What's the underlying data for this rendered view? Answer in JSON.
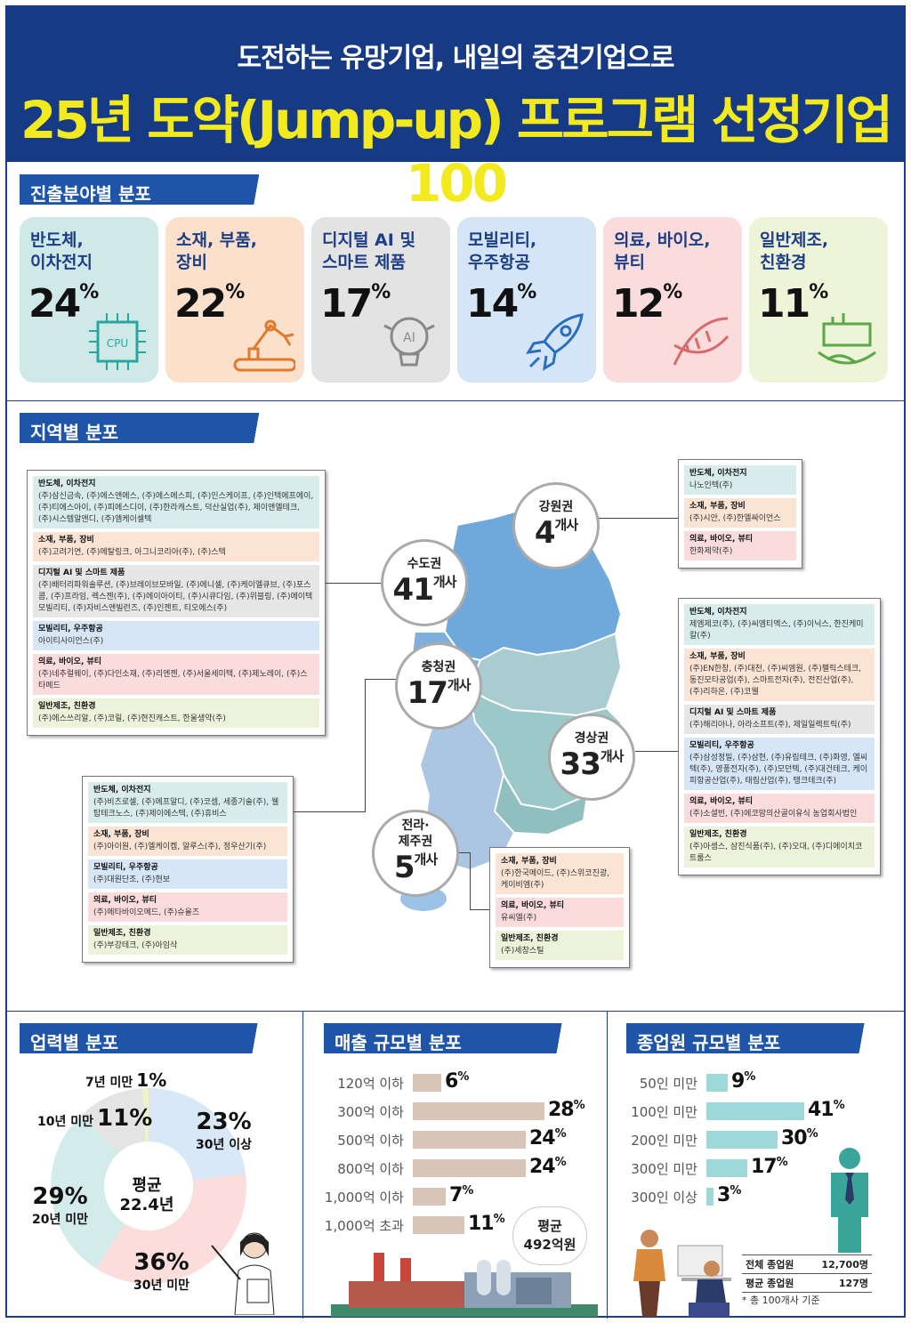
{
  "header": {
    "subtitle": "도전하는 유망기업, 내일의 중견기업으로",
    "title": "25년 도약(Jump-up) 프로그램 선정기업 100"
  },
  "sections": {
    "field": "진출분야별 분포",
    "region": "지역별 분포",
    "age": "업력별 분포",
    "sales": "매출 규모별 분포",
    "employees": "종업원 규모별 분포"
  },
  "fields": [
    {
      "name": "반도체,\n이차전지",
      "pct": "24",
      "color": "#cfe9e9",
      "icon": "cpu-icon"
    },
    {
      "name": "소재, 부품,\n장비",
      "pct": "22",
      "color": "#fbe0cc",
      "icon": "robot-arm-icon"
    },
    {
      "name": "디지털 AI 및\n스마트 제품",
      "pct": "17",
      "color": "#e3e3e3",
      "icon": "ai-bulb-icon"
    },
    {
      "name": "모빌리티,\n우주항공",
      "pct": "14",
      "color": "#d3e5f6",
      "icon": "rocket-icon"
    },
    {
      "name": "의료, 바이오,\n뷰티",
      "pct": "12",
      "color": "#fbdcdc",
      "icon": "dna-icon"
    },
    {
      "name": "일반제조,\n친환경",
      "pct": "11",
      "color": "#eef4d7",
      "icon": "factory-earth-icon"
    }
  ],
  "pct_sign": "%",
  "unit_count": "개사",
  "regions": [
    {
      "name": "수도권",
      "count": "41"
    },
    {
      "name": "강원권",
      "count": "4"
    },
    {
      "name": "충청권",
      "count": "17"
    },
    {
      "name": "경상권",
      "count": "33"
    },
    {
      "name": "전라·\n제주권",
      "count": "5"
    }
  ],
  "boxes": {
    "capital": [
      {
        "t": "반도체, 이차전지",
        "v": "(주)삼신금속, (주)에스앤에스, (주)에스에스피, (주)인스케이프, (주)인텍에프에이, (주)티에스아이, (주)피에스디이, (주)한라캐스트, 덕산실업(주), 제이앤엘테크, (주)시스템알앤디, (주)엠케이셀텍"
      },
      {
        "t": "소재, 부품, 장비",
        "v": "(주)고려기연, (주)메탈링크, 아그니코리아(주), (주)스텍"
      },
      {
        "t": "디지털 AI 및 스마트 제품",
        "v": "(주)배터리파워솔루션, (주)브레이브모바일, (주)에니셀, (주)케이엘큐브, (주)포스콤, (주)프라임, 렉스젠(주), (주)에이아이티, (주)시큐다임, (주)위블링, (주)에이텍모빌리티, (주)자비스앤빌런즈, (주)인젠트, 티오에스(주)"
      },
      {
        "t": "모빌리티, 우주항공",
        "v": "아이티사이언스(주)"
      },
      {
        "t": "의료, 바이오, 뷰티",
        "v": "(주)네추럴웨이, (주)다인소재, (주)리엔젠, (주)서울세미텍, (주)제노레이, (주)스타메드"
      },
      {
        "t": "일반제조, 친환경",
        "v": "(주)에스쓰리알, (주)코릴, (주)현진캐스트, 한울생약(주)"
      }
    ],
    "gangwon": [
      {
        "t": "반도체, 이차전지",
        "v": "나노인텍(주)"
      },
      {
        "t": "소재, 부품, 장비",
        "v": "(주)시안, (주)한엘싸이언스"
      },
      {
        "t": "의료, 바이오, 뷰티",
        "v": "한화제약(주)"
      }
    ],
    "chungcheong": [
      {
        "t": "반도체, 이차전지",
        "v": "(주)비츠로셀, (주)에프알디, (주)코셈, 세종기술(주), 웰탑테크노스, (주)제이에스텍, (주)휴비스"
      },
      {
        "t": "소재, 부품, 장비",
        "v": "(주)아이원, (주)엘케이켐, 알루스(주), 정우산기(주)"
      },
      {
        "t": "모빌리티, 우주항공",
        "v": "(주)대원단조, (주)현보"
      },
      {
        "t": "의료, 바이오, 뷰티",
        "v": "(주)메타바이오메드, (주)슈올즈"
      },
      {
        "t": "일반제조, 친환경",
        "v": "(주)부강테크, (주)아임삭"
      }
    ],
    "gyeongsang": [
      {
        "t": "반도체, 이차전지",
        "v": "제엠제코(주), (주)씨엠티엑스, (주)이닉스, 한진케미칼(주)"
      },
      {
        "t": "소재, 부품, 장비",
        "v": "(주)EN한창, (주)대천, (주)씨엠원, (주)펠릭스테크, 동진모타공업(주), 스마트전자(주), 전진산업(주), (주)리하온, (주)코웰"
      },
      {
        "t": "디지털 AI 및 스마트 제품",
        "v": "(주)해리아나, 아라소프트(주), 제일일렉트릭(주)"
      },
      {
        "t": "모빌리티, 우주항공",
        "v": "(주)삼성정밀, (주)삼현, (주)유림테크, (주)화영, 엘씨텍(주), 영풍전자(주), (주)모던텍, (주)대건테크, 케이피항공산업(주), 태림산업(주), 탱크테크(주)"
      },
      {
        "t": "의료, 바이오, 뷰티",
        "v": "(주)소셜빈, (주)에코맘의산골이유식 농업회사법인"
      },
      {
        "t": "일반제조, 친환경",
        "v": "(주)아셈스, 삼진식품(주), (주)오대, (주)디에이치코트룸스"
      }
    ],
    "jeolla": [
      {
        "t": "소재, 부품, 장비",
        "v": "(주)한국메이드, (주)스위코진광, 케이비엠(주)"
      },
      {
        "t": "의료, 바이오, 뷰티",
        "v": "유씨엘(주)"
      },
      {
        "t": "일반제조, 친환경",
        "v": "(주)세창스틸"
      }
    ]
  },
  "age": {
    "center_label": "평균",
    "center_value": "22.4년",
    "slices": [
      {
        "label": "30년 이상",
        "pct": "23",
        "value": 23,
        "color": "#d9e8f6"
      },
      {
        "label": "30년 미만",
        "pct": "36",
        "value": 36,
        "color": "#fbdedc"
      },
      {
        "label": "20년 미만",
        "pct": "29",
        "value": 29,
        "color": "#d4ebeb"
      },
      {
        "label": "10년 미만",
        "pct": "11",
        "value": 11,
        "color": "#e4e4e4"
      },
      {
        "label": "7년 미만",
        "pct": "1",
        "value": 1,
        "color": "#eef4c8"
      }
    ]
  },
  "sales": {
    "avg_label": "평균",
    "avg_value": "492억원",
    "items": [
      {
        "label": "120억 이하",
        "pct": "6",
        "value": 6
      },
      {
        "label": "300억 이하",
        "pct": "28",
        "value": 28
      },
      {
        "label": "500억 이하",
        "pct": "24",
        "value": 24
      },
      {
        "label": "800억 이하",
        "pct": "24",
        "value": 24
      },
      {
        "label": "1,000억 이하",
        "pct": "7",
        "value": 7
      },
      {
        "label": "1,000억 초과",
        "pct": "11",
        "value": 11
      }
    ]
  },
  "employees": {
    "items": [
      {
        "label": "50인 미만",
        "pct": "9",
        "value": 9
      },
      {
        "label": "100인 미만",
        "pct": "41",
        "value": 41
      },
      {
        "label": "200인 미만",
        "pct": "30",
        "value": 30
      },
      {
        "label": "300인 미만",
        "pct": "17",
        "value": 17
      },
      {
        "label": "300인 이상",
        "pct": "3",
        "value": 3
      }
    ],
    "table": [
      {
        "k": "전체 종업원",
        "v": "12,700명"
      },
      {
        "k": "평균 종업원",
        "v": "127명"
      }
    ],
    "note": "* 총 100개사 기준"
  }
}
